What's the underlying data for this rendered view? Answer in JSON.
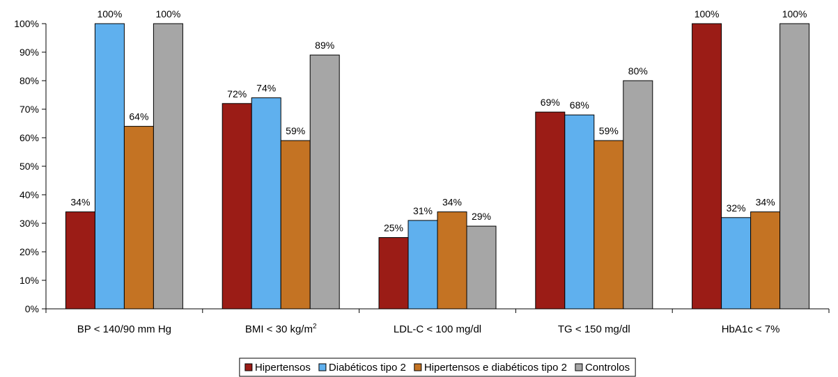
{
  "chart_data": {
    "type": "bar",
    "categories": [
      {
        "main": "BP < 140/90 mm Hg",
        "sup": ""
      },
      {
        "main": "BMI < 30 kg/m",
        "sup": "2"
      },
      {
        "main": "LDL-C < 100 mg/dl",
        "sup": ""
      },
      {
        "main": "TG < 150 mg/dl",
        "sup": ""
      },
      {
        "main": "HbA1c < 7%",
        "sup": ""
      }
    ],
    "series": [
      {
        "name": "Hipertensos",
        "color": "#9b1c16",
        "values": [
          34,
          72,
          25,
          69,
          100
        ]
      },
      {
        "name": "Diabéticos tipo 2",
        "color": "#5fb0ee",
        "values": [
          100,
          74,
          31,
          68,
          32
        ]
      },
      {
        "name": "Hipertensos e diabéticos tipo 2",
        "color": "#c47323",
        "values": [
          64,
          59,
          34,
          59,
          34
        ]
      },
      {
        "name": "Controlos",
        "color": "#a6a6a6",
        "values": [
          100,
          89,
          29,
          80,
          100
        ]
      }
    ],
    "value_suffix": "%",
    "ylim": [
      0,
      100
    ],
    "yticks": [
      0,
      10,
      20,
      30,
      40,
      50,
      60,
      70,
      80,
      90,
      100
    ],
    "ytick_labels": [
      "0%",
      "10%",
      "20%",
      "30%",
      "40%",
      "50%",
      "60%",
      "70%",
      "80%",
      "90%",
      "100%"
    ],
    "grid": false,
    "legend_position": "bottom"
  }
}
